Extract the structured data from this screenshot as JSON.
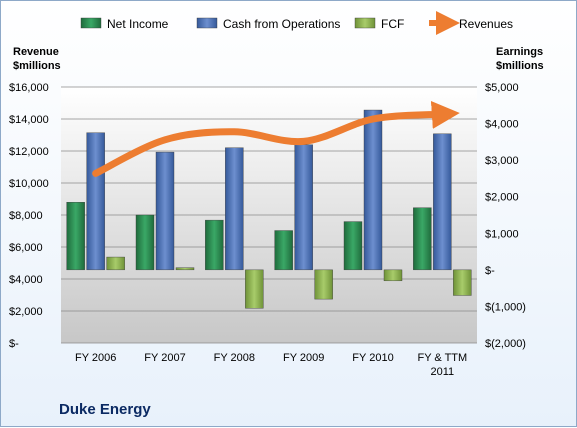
{
  "chart_data": {
    "type": "bar",
    "company": "Duke Energy",
    "left_axis_label": [
      "Revenue",
      "$millions"
    ],
    "right_axis_label": [
      "Earnings",
      "$millions"
    ],
    "categories": [
      [
        "FY 2006"
      ],
      [
        "FY 2007"
      ],
      [
        "FY 2008"
      ],
      [
        "FY 2009"
      ],
      [
        "FY 2010"
      ],
      [
        "FY & TTM",
        "2011"
      ]
    ],
    "left_axis": {
      "min": 0,
      "max": 16000,
      "step": 2000,
      "ticks": [
        "$-",
        "$2,000",
        "$4,000",
        "$6,000",
        "$8,000",
        "$10,000",
        "$12,000",
        "$14,000",
        "$16,000"
      ]
    },
    "right_axis": {
      "min": -2000,
      "max": 5000,
      "step": 1000,
      "ticks": [
        "$(2,000)",
        "$(1,000)",
        "$-",
        "$1,000",
        "$2,000",
        "$3,000",
        "$4,000",
        "$5,000"
      ]
    },
    "series": [
      {
        "name": "Net Income",
        "axis": "right",
        "kind": "bar",
        "color": "#2e8b57",
        "values": [
          1850,
          1500,
          1360,
          1075,
          1320,
          1700
        ]
      },
      {
        "name": "Cash from Operations",
        "axis": "right",
        "kind": "bar",
        "color": "#4a6fb0",
        "values": [
          3750,
          3220,
          3340,
          3420,
          4370,
          3720
        ]
      },
      {
        "name": "FCF",
        "axis": "right",
        "kind": "bar",
        "color": "#8db34e",
        "values": [
          350,
          60,
          -1050,
          -800,
          -300,
          -700
        ]
      },
      {
        "name": "Revenues",
        "axis": "left",
        "kind": "line",
        "color": "#ed7d31",
        "values": [
          10600,
          12700,
          13200,
          12600,
          14000,
          14300
        ]
      }
    ],
    "grid": true,
    "legend": "top"
  }
}
